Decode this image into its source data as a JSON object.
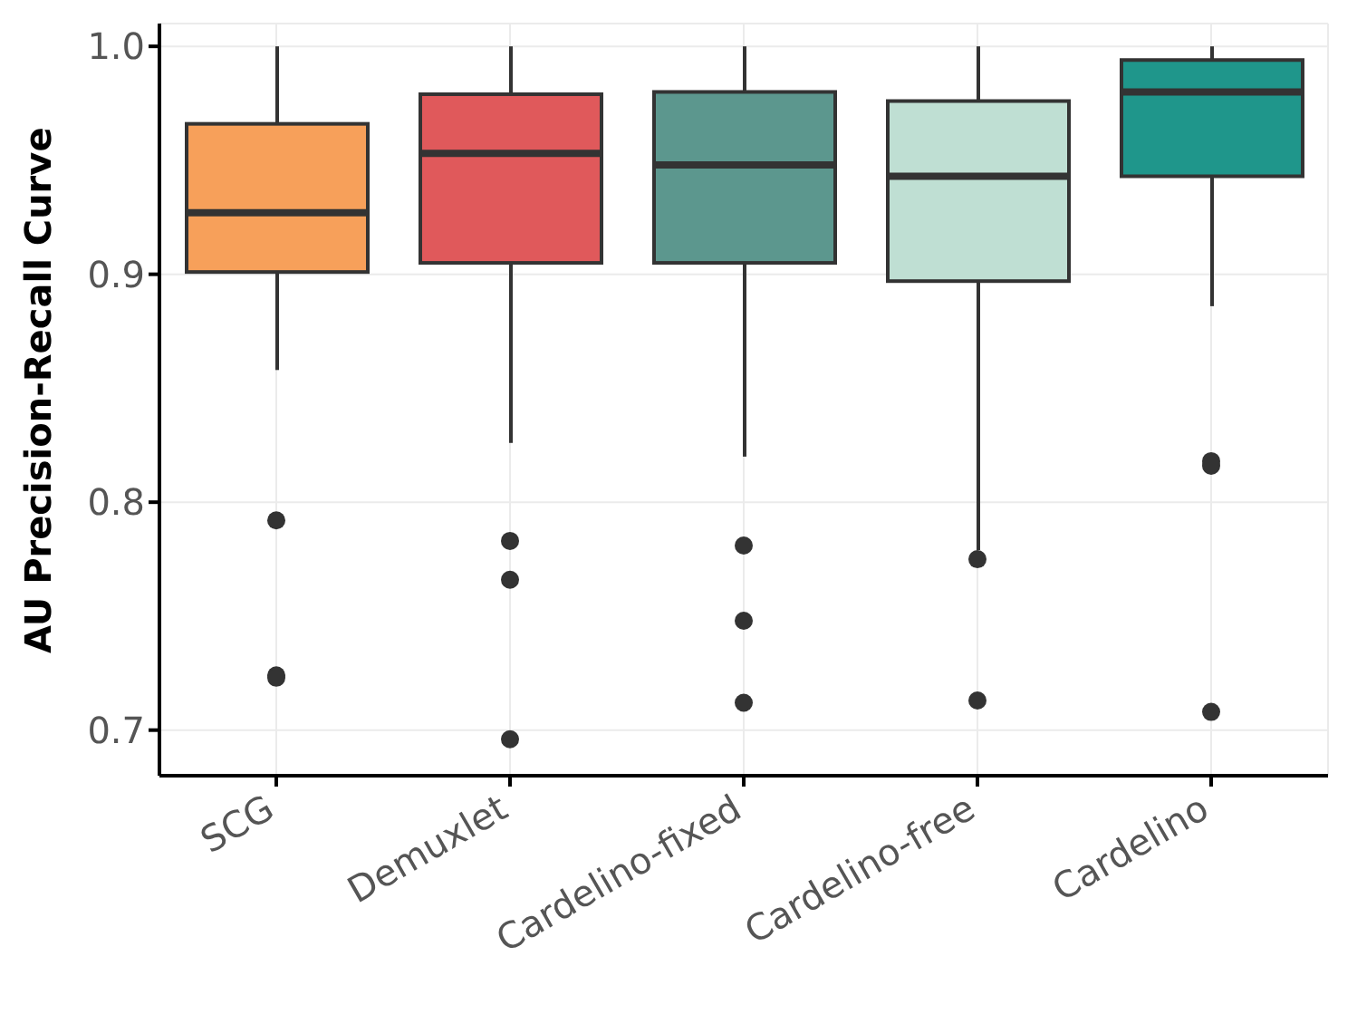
{
  "chart_data": {
    "type": "box",
    "ylabel": "AU Precision-Recall Curve",
    "categories": [
      "SCG",
      "Demuxlet",
      "Cardelino-fixed",
      "Cardelino-free",
      "Cardelino"
    ],
    "colors": [
      "#f7a05a",
      "#e0595b",
      "#5c978e",
      "#bfdfd3",
      "#1f968b"
    ],
    "boxes": [
      {
        "low": 0.858,
        "q1": 0.901,
        "median": 0.927,
        "q3": 0.966,
        "high": 1.0,
        "outliers": [
          0.792,
          0.724,
          0.723
        ]
      },
      {
        "low": 0.826,
        "q1": 0.905,
        "median": 0.953,
        "q3": 0.979,
        "high": 1.0,
        "outliers": [
          0.783,
          0.766,
          0.696
        ]
      },
      {
        "low": 0.82,
        "q1": 0.905,
        "median": 0.948,
        "q3": 0.98,
        "high": 1.0,
        "outliers": [
          0.781,
          0.748,
          0.712
        ]
      },
      {
        "low": 0.779,
        "q1": 0.897,
        "median": 0.943,
        "q3": 0.976,
        "high": 1.0,
        "outliers": [
          0.775,
          0.713
        ]
      },
      {
        "low": 0.886,
        "q1": 0.943,
        "median": 0.98,
        "q3": 0.994,
        "high": 1.0,
        "outliers": [
          0.818,
          0.816,
          0.708
        ]
      }
    ],
    "ylim": [
      0.68,
      1.01
    ],
    "yticks": [
      {
        "value": 0.7,
        "label": "0.7"
      },
      {
        "value": 0.8,
        "label": "0.8"
      },
      {
        "value": 0.9,
        "label": "0.9"
      },
      {
        "value": 1,
        "label": "1.0"
      }
    ],
    "grid": true
  }
}
